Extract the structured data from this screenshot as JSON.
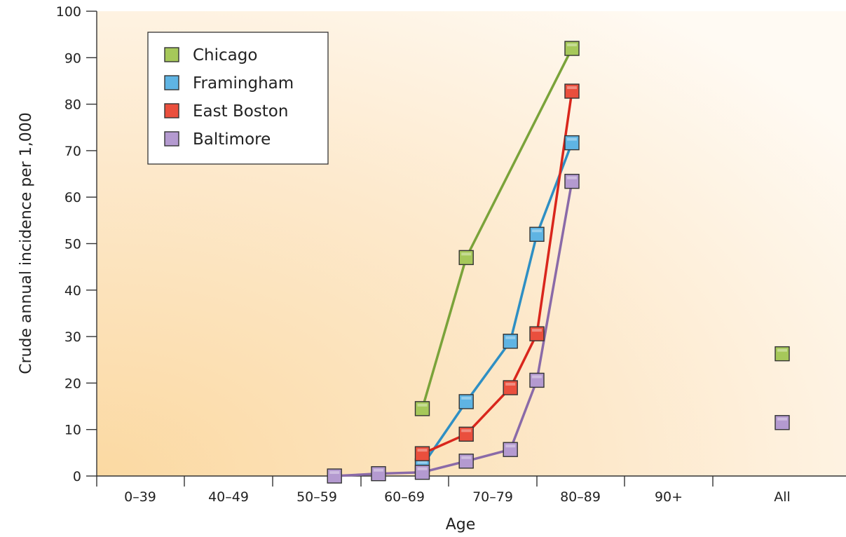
{
  "chart_data": {
    "type": "line",
    "xlabel": "Age",
    "ylabel": "Crude annual incidence per 1,000",
    "categories": [
      "0–39",
      "40–49",
      "50–59",
      "60–69",
      "70–79",
      "80–89",
      "90+",
      "All"
    ],
    "ylim": [
      0,
      100
    ],
    "yticks": [
      0,
      10,
      20,
      30,
      40,
      50,
      60,
      70,
      80,
      90,
      100
    ],
    "grid": false,
    "legend_position": "top-left",
    "series": [
      {
        "name": "Chicago",
        "color": "#7aa33a",
        "fill": "#a6c85a",
        "points": [
          {
            "age": 67,
            "value": 14.5
          },
          {
            "age": 72,
            "value": 47
          },
          {
            "age": 84,
            "value": 92
          }
        ],
        "all_value": 26.3
      },
      {
        "name": "Framingham",
        "color": "#2e8fc4",
        "fill": "#5fb4e3",
        "points": [
          {
            "age": 67,
            "value": 2.2
          },
          {
            "age": 72,
            "value": 16
          },
          {
            "age": 77,
            "value": 29
          },
          {
            "age": 80,
            "value": 52
          },
          {
            "age": 84,
            "value": 71.7
          }
        ]
      },
      {
        "name": "East Boston",
        "color": "#d9261c",
        "fill": "#ea4f3d",
        "points": [
          {
            "age": 67,
            "value": 4.8
          },
          {
            "age": 72,
            "value": 9
          },
          {
            "age": 77,
            "value": 19
          },
          {
            "age": 80,
            "value": 30.6
          },
          {
            "age": 84,
            "value": 82.8
          }
        ]
      },
      {
        "name": "Baltimore",
        "color": "#8a6aa8",
        "fill": "#b49ad0",
        "points": [
          {
            "age": 57,
            "value": 0
          },
          {
            "age": 62,
            "value": 0.5
          },
          {
            "age": 67,
            "value": 0.8
          },
          {
            "age": 72,
            "value": 3.2
          },
          {
            "age": 77,
            "value": 5.7
          },
          {
            "age": 80,
            "value": 20.6
          },
          {
            "age": 84,
            "value": 63.4
          }
        ],
        "all_value": 11.5
      }
    ]
  }
}
